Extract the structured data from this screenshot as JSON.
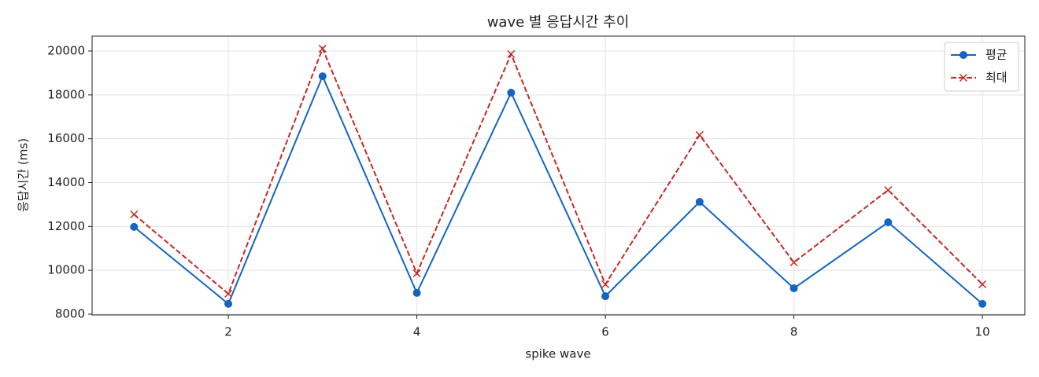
{
  "chart_data": {
    "type": "line",
    "title": "wave 별 응답시간 추이",
    "xlabel": "spike wave",
    "ylabel": "응답시간 (ms)",
    "x": [
      1,
      2,
      3,
      4,
      5,
      6,
      7,
      8,
      9,
      10
    ],
    "series": [
      {
        "name": "평균",
        "color": "#1565c0",
        "linestyle": "solid",
        "marker": "circle",
        "values": [
          11980,
          8470,
          18850,
          8970,
          18100,
          8820,
          13120,
          9180,
          12190,
          8470
        ]
      },
      {
        "name": "최대",
        "color": "#c62828",
        "linestyle": "dashed",
        "marker": "x",
        "values": [
          12550,
          8930,
          20110,
          9860,
          19860,
          9360,
          16170,
          10360,
          13660,
          9360
        ]
      }
    ],
    "xlim": [
      0.555,
      10.45
    ],
    "ylim": [
      7964,
      20680
    ],
    "xticks": [
      2,
      4,
      6,
      8,
      10
    ],
    "yticks": [
      8000,
      10000,
      12000,
      14000,
      16000,
      18000,
      20000
    ],
    "grid": true,
    "legend": "upper right"
  }
}
